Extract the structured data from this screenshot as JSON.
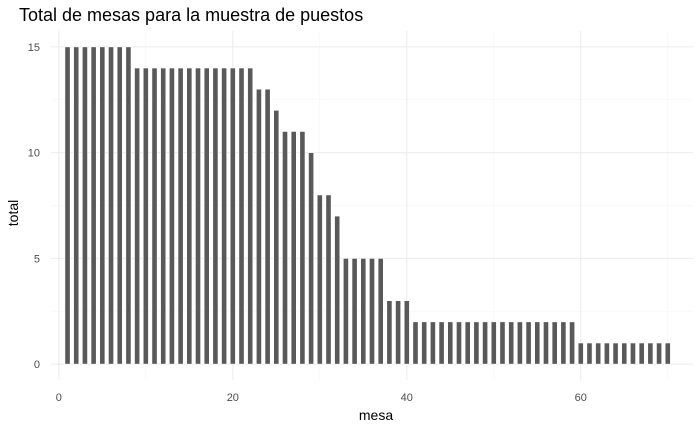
{
  "chart_data": {
    "type": "bar",
    "title": "Total de mesas para la muestra de puestos",
    "xlabel": "mesa",
    "ylabel": "total",
    "xlim": [
      -0.9,
      72.9
    ],
    "ylim": [
      -0.75,
      15.75
    ],
    "x_ticks": [
      0,
      20,
      40,
      60
    ],
    "y_ticks": [
      0,
      5,
      10,
      15
    ],
    "grid": true,
    "x": [
      1,
      2,
      3,
      4,
      5,
      6,
      7,
      8,
      9,
      10,
      11,
      12,
      13,
      14,
      15,
      16,
      17,
      18,
      19,
      20,
      21,
      22,
      23,
      24,
      25,
      26,
      27,
      28,
      29,
      30,
      31,
      32,
      33,
      34,
      35,
      36,
      37,
      38,
      39,
      40,
      41,
      42,
      43,
      44,
      45,
      46,
      47,
      48,
      49,
      50,
      51,
      52,
      53,
      54,
      55,
      56,
      57,
      58,
      59,
      60,
      61,
      62,
      63,
      64,
      65,
      66,
      67,
      68,
      69,
      70
    ],
    "values": [
      15,
      15,
      15,
      15,
      15,
      15,
      15,
      15,
      14,
      14,
      14,
      14,
      14,
      14,
      14,
      14,
      14,
      14,
      14,
      14,
      14,
      14,
      13,
      13,
      12,
      11,
      11,
      11,
      10,
      8,
      8,
      7,
      5,
      5,
      5,
      5,
      5,
      3,
      3,
      3,
      2,
      2,
      2,
      2,
      2,
      2,
      2,
      2,
      2,
      2,
      2,
      2,
      2,
      2,
      2,
      2,
      2,
      2,
      2,
      1,
      1,
      1,
      1,
      1,
      1,
      1,
      1,
      1,
      1,
      1
    ],
    "colors": {
      "bar_fill": "#595959",
      "bar_outline": "#ffffff",
      "grid": "#ebebeb"
    }
  }
}
